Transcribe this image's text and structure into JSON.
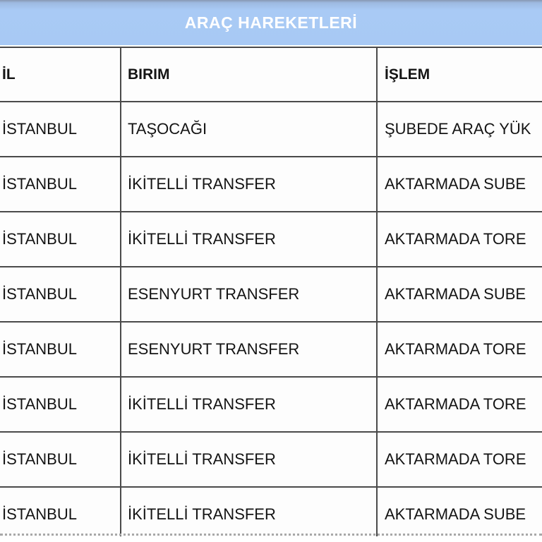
{
  "title": "ARAÇ HAREKETLERİ",
  "table": {
    "columns": [
      {
        "key": "il",
        "label": "İL"
      },
      {
        "key": "birim",
        "label": "BIRIM"
      },
      {
        "key": "islem",
        "label": "İŞLEM"
      }
    ],
    "rows": [
      {
        "il": "İSTANBUL",
        "birim": "TAŞOCAĞI",
        "islem": "ŞUBEDE ARAÇ YÜK"
      },
      {
        "il": "İSTANBUL",
        "birim": "İKİTELLİ TRANSFER",
        "islem": "AKTARMADA SUBE"
      },
      {
        "il": "İSTANBUL",
        "birim": "İKİTELLİ TRANSFER",
        "islem": "AKTARMADA TORE"
      },
      {
        "il": "İSTANBUL",
        "birim": "ESENYURT TRANSFER",
        "islem": "AKTARMADA SUBE"
      },
      {
        "il": "İSTANBUL",
        "birim": "ESENYURT TRANSFER",
        "islem": "AKTARMADA TORE"
      },
      {
        "il": "İSTANBUL",
        "birim": "İKİTELLİ TRANSFER",
        "islem": "AKTARMADA TORE"
      },
      {
        "il": "İSTANBUL",
        "birim": "İKİTELLİ TRANSFER",
        "islem": "AKTARMADA TORE"
      },
      {
        "il": "İSTANBUL",
        "birim": "İKİTELLİ TRANSFER",
        "islem": "AKTARMADA SUBE"
      }
    ]
  },
  "colors": {
    "band_blue": "#a9caf5",
    "band_top_edge": "#8798b2",
    "title_text": "#ffffff",
    "table_border": "#4a4a4a",
    "body_text": "#141414",
    "dotted_line": "#a8a8a8",
    "background": "#ffffff"
  }
}
